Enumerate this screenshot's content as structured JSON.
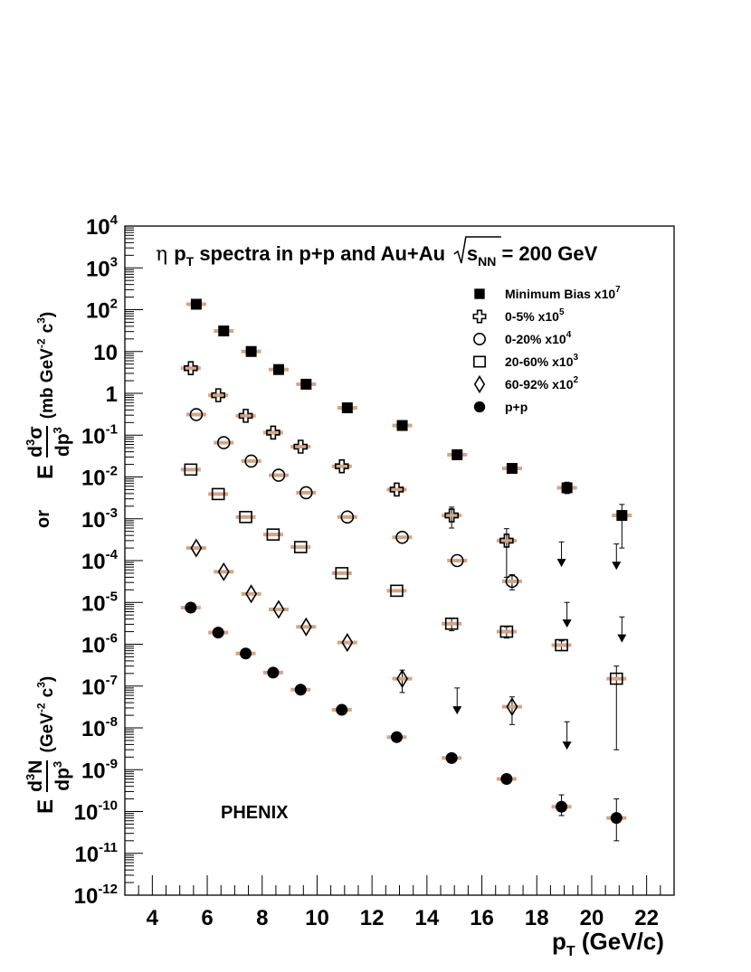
{
  "chart_data": {
    "type": "scatter",
    "title": "η p_T spectra in p+p and Au+Au √s_NN = 200 GeV",
    "title_parts": {
      "eta": "η",
      "p": "p",
      "sub_T": "T",
      "mid": "spectra in p+p and Au+Au",
      "s": "s",
      "sub_NN": "NN",
      "end": "= 200 GeV"
    },
    "annotation": "PHENIX",
    "xlabel": "p_T (GeV/c)",
    "xlabel_parts": {
      "p": "p",
      "sub_T": "T",
      "unit": "(GeV/c)"
    },
    "ylabel_top": "E d³σ/dp³ (mb GeV⁻² c³)",
    "ylabel_or": "or",
    "ylabel_bottom": "E d³N/dp³ (GeV⁻² c³)",
    "ylabel_parts": {
      "E": "E",
      "d3": "d",
      "sup3": "3",
      "sigma": "σ",
      "dp": "dp",
      "N": "N",
      "unit_top_a": "(mb GeV",
      "unit_bottom_a": "(GeV",
      "unit_exp": "-2",
      "unit_c": "c",
      "unit_close": ")",
      "or": "or"
    },
    "xlim": [
      3,
      23
    ],
    "ylim": [
      1e-12,
      10000.0
    ],
    "y_scale": "log",
    "x_ticks": [
      4,
      6,
      8,
      10,
      12,
      14,
      16,
      18,
      20,
      22
    ],
    "x_tick_labels": [
      "4",
      "6",
      "8",
      "10",
      "12",
      "14",
      "16",
      "18",
      "20",
      "22"
    ],
    "y_tick_labels": [
      {
        "v": 10000.0,
        "base": "10",
        "exp": "4"
      },
      {
        "v": 1000.0,
        "base": "10",
        "exp": "3"
      },
      {
        "v": 100.0,
        "base": "10",
        "exp": "2"
      },
      {
        "v": 10.0,
        "base": "10",
        "exp": ""
      },
      {
        "v": 1,
        "base": "1",
        "exp": ""
      },
      {
        "v": 0.1,
        "base": "10",
        "exp": "-1"
      },
      {
        "v": 0.01,
        "base": "10",
        "exp": "-2"
      },
      {
        "v": 0.001,
        "base": "10",
        "exp": "-3"
      },
      {
        "v": 0.0001,
        "base": "10",
        "exp": "-4"
      },
      {
        "v": 1e-05,
        "base": "10",
        "exp": "-5"
      },
      {
        "v": 1e-06,
        "base": "10",
        "exp": "-6"
      },
      {
        "v": 1e-07,
        "base": "10",
        "exp": "-7"
      },
      {
        "v": 1e-08,
        "base": "10",
        "exp": "-8"
      },
      {
        "v": 1e-09,
        "base": "10",
        "exp": "-9"
      },
      {
        "v": 1e-10,
        "base": "10",
        "exp": "-10"
      },
      {
        "v": 1e-11,
        "base": "10",
        "exp": "-11"
      },
      {
        "v": 1e-12,
        "base": "10",
        "exp": "-12"
      }
    ],
    "grid": false,
    "legend_position": "top-right",
    "colors": {
      "axis": "#000000",
      "syst_band": "#d4a584",
      "marker": "#000000"
    },
    "series": [
      {
        "name": "Minimum Bias x10^7",
        "label": "Minimum Bias x10",
        "exp": "7",
        "marker": "filled-square",
        "points": [
          {
            "x": 5.6,
            "y": 135
          },
          {
            "x": 6.6,
            "y": 31
          },
          {
            "x": 7.6,
            "y": 10
          },
          {
            "x": 8.6,
            "y": 3.7
          },
          {
            "x": 9.6,
            "y": 1.65
          },
          {
            "x": 11.1,
            "y": 0.45
          },
          {
            "x": 13.1,
            "y": 0.17
          },
          {
            "x": 15.1,
            "y": 0.034
          },
          {
            "x": 17.1,
            "y": 0.016
          },
          {
            "x": 19.1,
            "y": 0.0055,
            "err": [
              0.004,
              0.0075
            ]
          },
          {
            "x": 21.1,
            "y": 0.0012,
            "err": [
              0.0002,
              0.0022
            ]
          }
        ],
        "upper_limits": []
      },
      {
        "name": "0-5% x10^5",
        "label": "0-5% x10",
        "exp": "5",
        "marker": "open-cross",
        "points": [
          {
            "x": 5.4,
            "y": 4.0
          },
          {
            "x": 6.4,
            "y": 0.9
          },
          {
            "x": 7.4,
            "y": 0.29
          },
          {
            "x": 8.4,
            "y": 0.115
          },
          {
            "x": 9.4,
            "y": 0.053
          },
          {
            "x": 10.9,
            "y": 0.018
          },
          {
            "x": 12.9,
            "y": 0.005
          },
          {
            "x": 14.9,
            "y": 0.0012,
            "err": [
              0.0006,
              0.0019
            ]
          },
          {
            "x": 16.9,
            "y": 0.0003,
            "err": [
              4e-05,
              0.00058
            ]
          }
        ],
        "upper_limits": [
          {
            "x": 18.9,
            "top": 0.00028,
            "bottom": 7e-05
          },
          {
            "x": 20.9,
            "top": 0.00025,
            "bottom": 6e-05
          }
        ]
      },
      {
        "name": "0-20% x10^4",
        "label": "0-20% x10",
        "exp": "4",
        "marker": "open-circle",
        "points": [
          {
            "x": 5.6,
            "y": 0.31
          },
          {
            "x": 6.6,
            "y": 0.066
          },
          {
            "x": 7.6,
            "y": 0.024
          },
          {
            "x": 8.6,
            "y": 0.011
          },
          {
            "x": 9.6,
            "y": 0.0042
          },
          {
            "x": 11.1,
            "y": 0.0011
          },
          {
            "x": 13.1,
            "y": 0.00036
          },
          {
            "x": 15.1,
            "y": 0.0001
          },
          {
            "x": 17.1,
            "y": 3.2e-05,
            "err": [
              2e-05,
              4.6e-05
            ]
          }
        ],
        "upper_limits": [
          {
            "x": 19.1,
            "top": 1e-05,
            "bottom": 2.5e-06
          },
          {
            "x": 21.1,
            "top": 4.5e-06,
            "bottom": 1.1e-06
          }
        ]
      },
      {
        "name": "20-60% x10^3",
        "label": "20-60% x10",
        "exp": "3",
        "marker": "open-square",
        "points": [
          {
            "x": 5.4,
            "y": 0.015
          },
          {
            "x": 6.4,
            "y": 0.0039
          },
          {
            "x": 7.4,
            "y": 0.0011
          },
          {
            "x": 8.4,
            "y": 0.00042
          },
          {
            "x": 9.4,
            "y": 0.00021
          },
          {
            "x": 10.9,
            "y": 5e-05
          },
          {
            "x": 12.9,
            "y": 1.9e-05
          },
          {
            "x": 14.9,
            "y": 3.1e-06,
            "err": [
              2.1e-06,
              4.1e-06
            ]
          },
          {
            "x": 16.9,
            "y": 2e-06,
            "err": [
              1.4e-06,
              2.6e-06
            ]
          },
          {
            "x": 18.9,
            "y": 9.5e-07,
            "err": [
              7e-07,
              1.2e-06
            ]
          },
          {
            "x": 20.9,
            "y": 1.5e-07,
            "err": [
              3e-09,
              3e-07
            ]
          }
        ],
        "upper_limits": []
      },
      {
        "name": "60-92% x10^2",
        "label": "60-92% x10",
        "exp": "2",
        "marker": "open-diamond",
        "points": [
          {
            "x": 5.6,
            "y": 0.0002
          },
          {
            "x": 6.6,
            "y": 5.4e-05
          },
          {
            "x": 7.6,
            "y": 1.6e-05
          },
          {
            "x": 8.6,
            "y": 6.8e-06
          },
          {
            "x": 9.6,
            "y": 2.6e-06
          },
          {
            "x": 11.1,
            "y": 1.1e-06
          },
          {
            "x": 13.1,
            "y": 1.5e-07,
            "err": [
              7e-08,
              2.4e-07
            ]
          },
          {
            "x": 17.1,
            "y": 3.2e-08,
            "err": [
              1.2e-08,
              5.5e-08
            ]
          }
        ],
        "upper_limits": [
          {
            "x": 15.1,
            "top": 9e-08,
            "bottom": 2.1e-08
          },
          {
            "x": 19.1,
            "top": 1.4e-08,
            "bottom": 3e-09
          }
        ]
      },
      {
        "name": "p+p",
        "label": "p+p",
        "exp": "",
        "marker": "filled-circle",
        "points": [
          {
            "x": 5.4,
            "y": 7.5e-06
          },
          {
            "x": 6.4,
            "y": 1.9e-06
          },
          {
            "x": 7.4,
            "y": 6e-07
          },
          {
            "x": 8.4,
            "y": 2.1e-07
          },
          {
            "x": 9.4,
            "y": 8.2e-08
          },
          {
            "x": 10.9,
            "y": 2.7e-08
          },
          {
            "x": 12.9,
            "y": 6e-09
          },
          {
            "x": 14.9,
            "y": 1.9e-09
          },
          {
            "x": 16.9,
            "y": 6e-10
          },
          {
            "x": 18.9,
            "y": 1.3e-10,
            "err": [
              8e-11,
              2.5e-10
            ]
          },
          {
            "x": 20.9,
            "y": 7e-11,
            "err": [
              2e-11,
              2e-10
            ]
          }
        ],
        "upper_limits": []
      }
    ]
  }
}
